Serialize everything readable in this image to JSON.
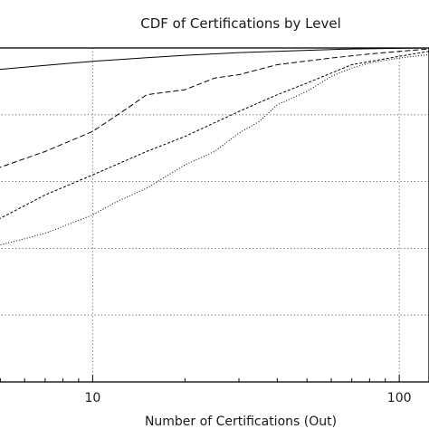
{
  "chart_data": {
    "type": "line",
    "title": "CDF of Certifications by Level",
    "xlabel": "Number of Certifications (Out)",
    "ylabel": "",
    "x_scale": "log",
    "xlim": [
      3.8,
      125
    ],
    "ylim": [
      0,
      1
    ],
    "grid": true,
    "x_ticks": [
      {
        "value": 10,
        "label": "10"
      },
      {
        "value": 100,
        "label": "100"
      }
    ],
    "y_grid_values": [
      0.2,
      0.4,
      0.6,
      0.8
    ],
    "series": [
      {
        "style": "solid",
        "points": [
          [
            3.8,
            0.925
          ],
          [
            5,
            0.936
          ],
          [
            7,
            0.948
          ],
          [
            10,
            0.96
          ],
          [
            15,
            0.971
          ],
          [
            20,
            0.978
          ],
          [
            30,
            0.986
          ],
          [
            50,
            0.993
          ],
          [
            70,
            0.997
          ],
          [
            100,
            0.999
          ],
          [
            125,
            1.0
          ]
        ]
      },
      {
        "style": "dashed",
        "points": [
          [
            3.8,
            0.627
          ],
          [
            5,
            0.643
          ],
          [
            7,
            0.69
          ],
          [
            10,
            0.75
          ],
          [
            13,
            0.82
          ],
          [
            15,
            0.86
          ],
          [
            20,
            0.875
          ],
          [
            25,
            0.91
          ],
          [
            30,
            0.92
          ],
          [
            40,
            0.95
          ],
          [
            60,
            0.97
          ],
          [
            80,
            0.982
          ],
          [
            100,
            0.99
          ],
          [
            125,
            0.997
          ]
        ]
      },
      {
        "style": "short-dashed",
        "points": [
          [
            3.8,
            0.455
          ],
          [
            5,
            0.49
          ],
          [
            7,
            0.56
          ],
          [
            10,
            0.62
          ],
          [
            15,
            0.69
          ],
          [
            20,
            0.735
          ],
          [
            30,
            0.81
          ],
          [
            40,
            0.86
          ],
          [
            50,
            0.895
          ],
          [
            70,
            0.95
          ],
          [
            100,
            0.975
          ],
          [
            125,
            0.99
          ]
        ]
      },
      {
        "style": "dotted",
        "points": [
          [
            3.8,
            0.38
          ],
          [
            5,
            0.41
          ],
          [
            7,
            0.445
          ],
          [
            10,
            0.5
          ],
          [
            12,
            0.54
          ],
          [
            15,
            0.58
          ],
          [
            20,
            0.65
          ],
          [
            25,
            0.69
          ],
          [
            30,
            0.745
          ],
          [
            35,
            0.78
          ],
          [
            40,
            0.83
          ],
          [
            50,
            0.87
          ],
          [
            60,
            0.915
          ],
          [
            70,
            0.94
          ],
          [
            80,
            0.955
          ],
          [
            100,
            0.97
          ],
          [
            125,
            0.98
          ]
        ]
      }
    ]
  }
}
